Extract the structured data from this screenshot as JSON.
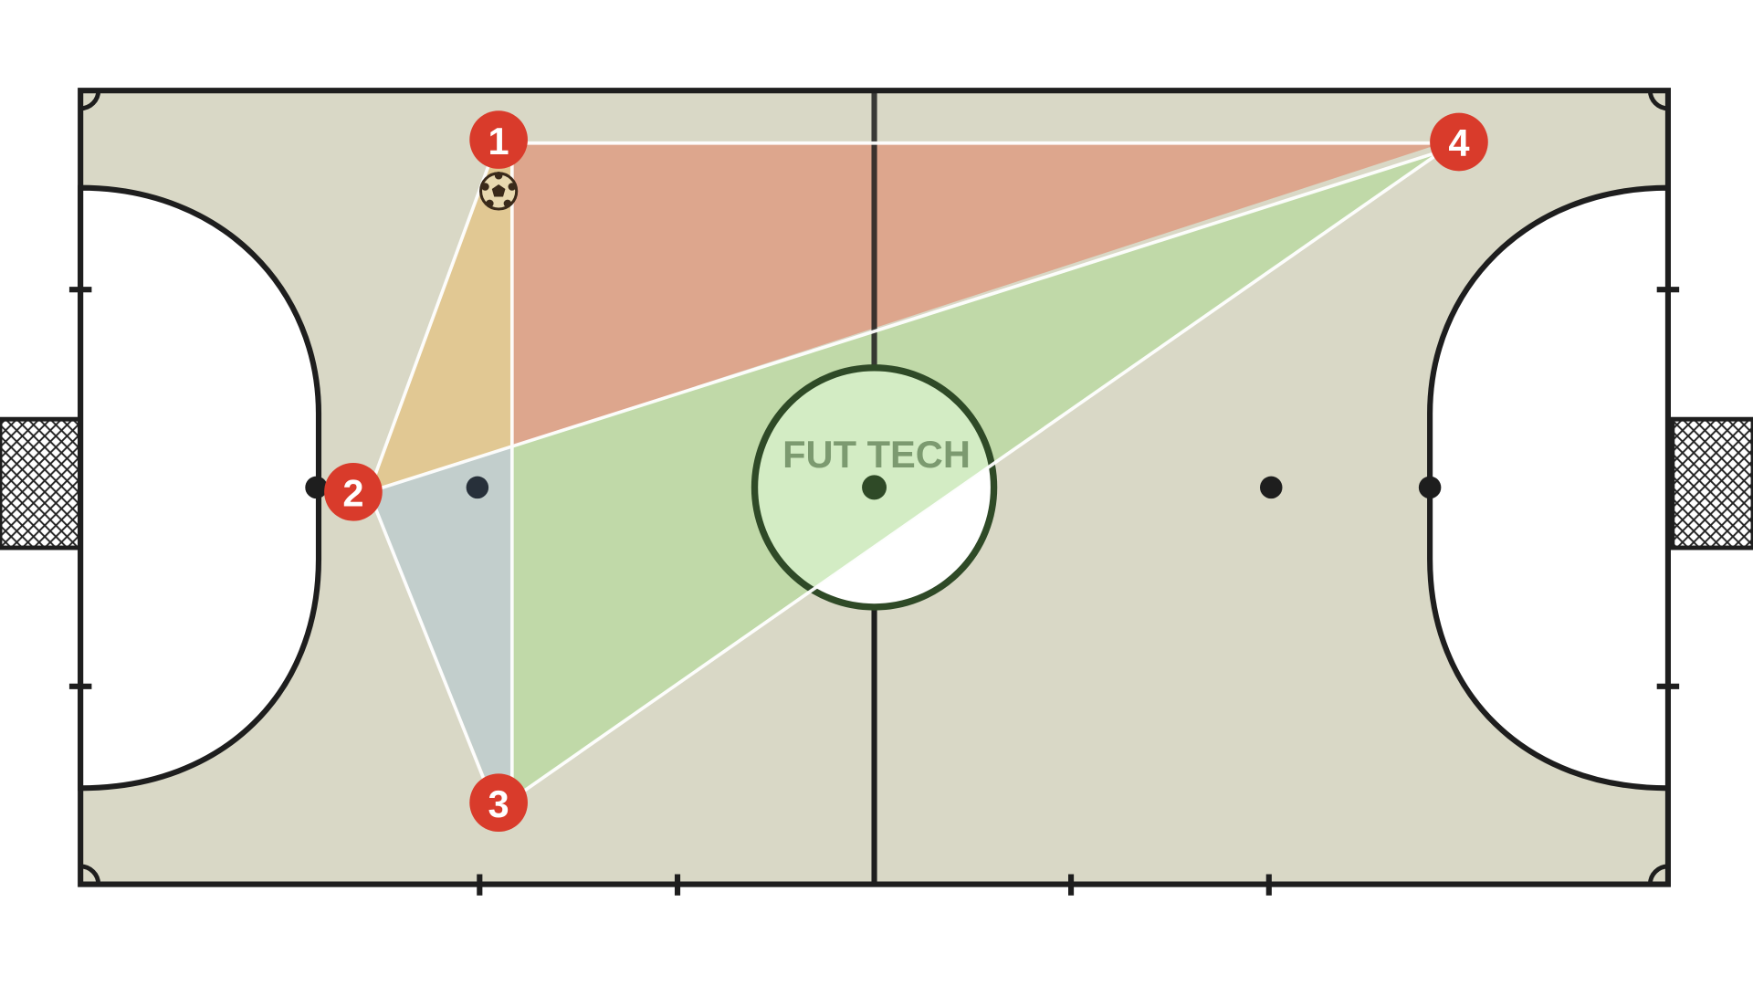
{
  "logo": {
    "text": "FUT TECH"
  },
  "colors": {
    "court": "#d9d8c6",
    "lines": "#1e1e1e",
    "player_marker": "#d93b2b",
    "zone_red": "#dba795",
    "zone_orange": "#e0cd9b",
    "zone_blue": "#c4cfcd",
    "zone_green": "#c2d9a8",
    "center_circle_line": "#2f4a27"
  },
  "players": [
    {
      "label": "1",
      "has_ball": true
    },
    {
      "label": "2",
      "has_ball": false
    },
    {
      "label": "3",
      "has_ball": false
    },
    {
      "label": "4",
      "has_ball": false
    }
  ],
  "icons": {
    "ball": "soccer-ball-icon",
    "goal_net": "goal-net"
  }
}
